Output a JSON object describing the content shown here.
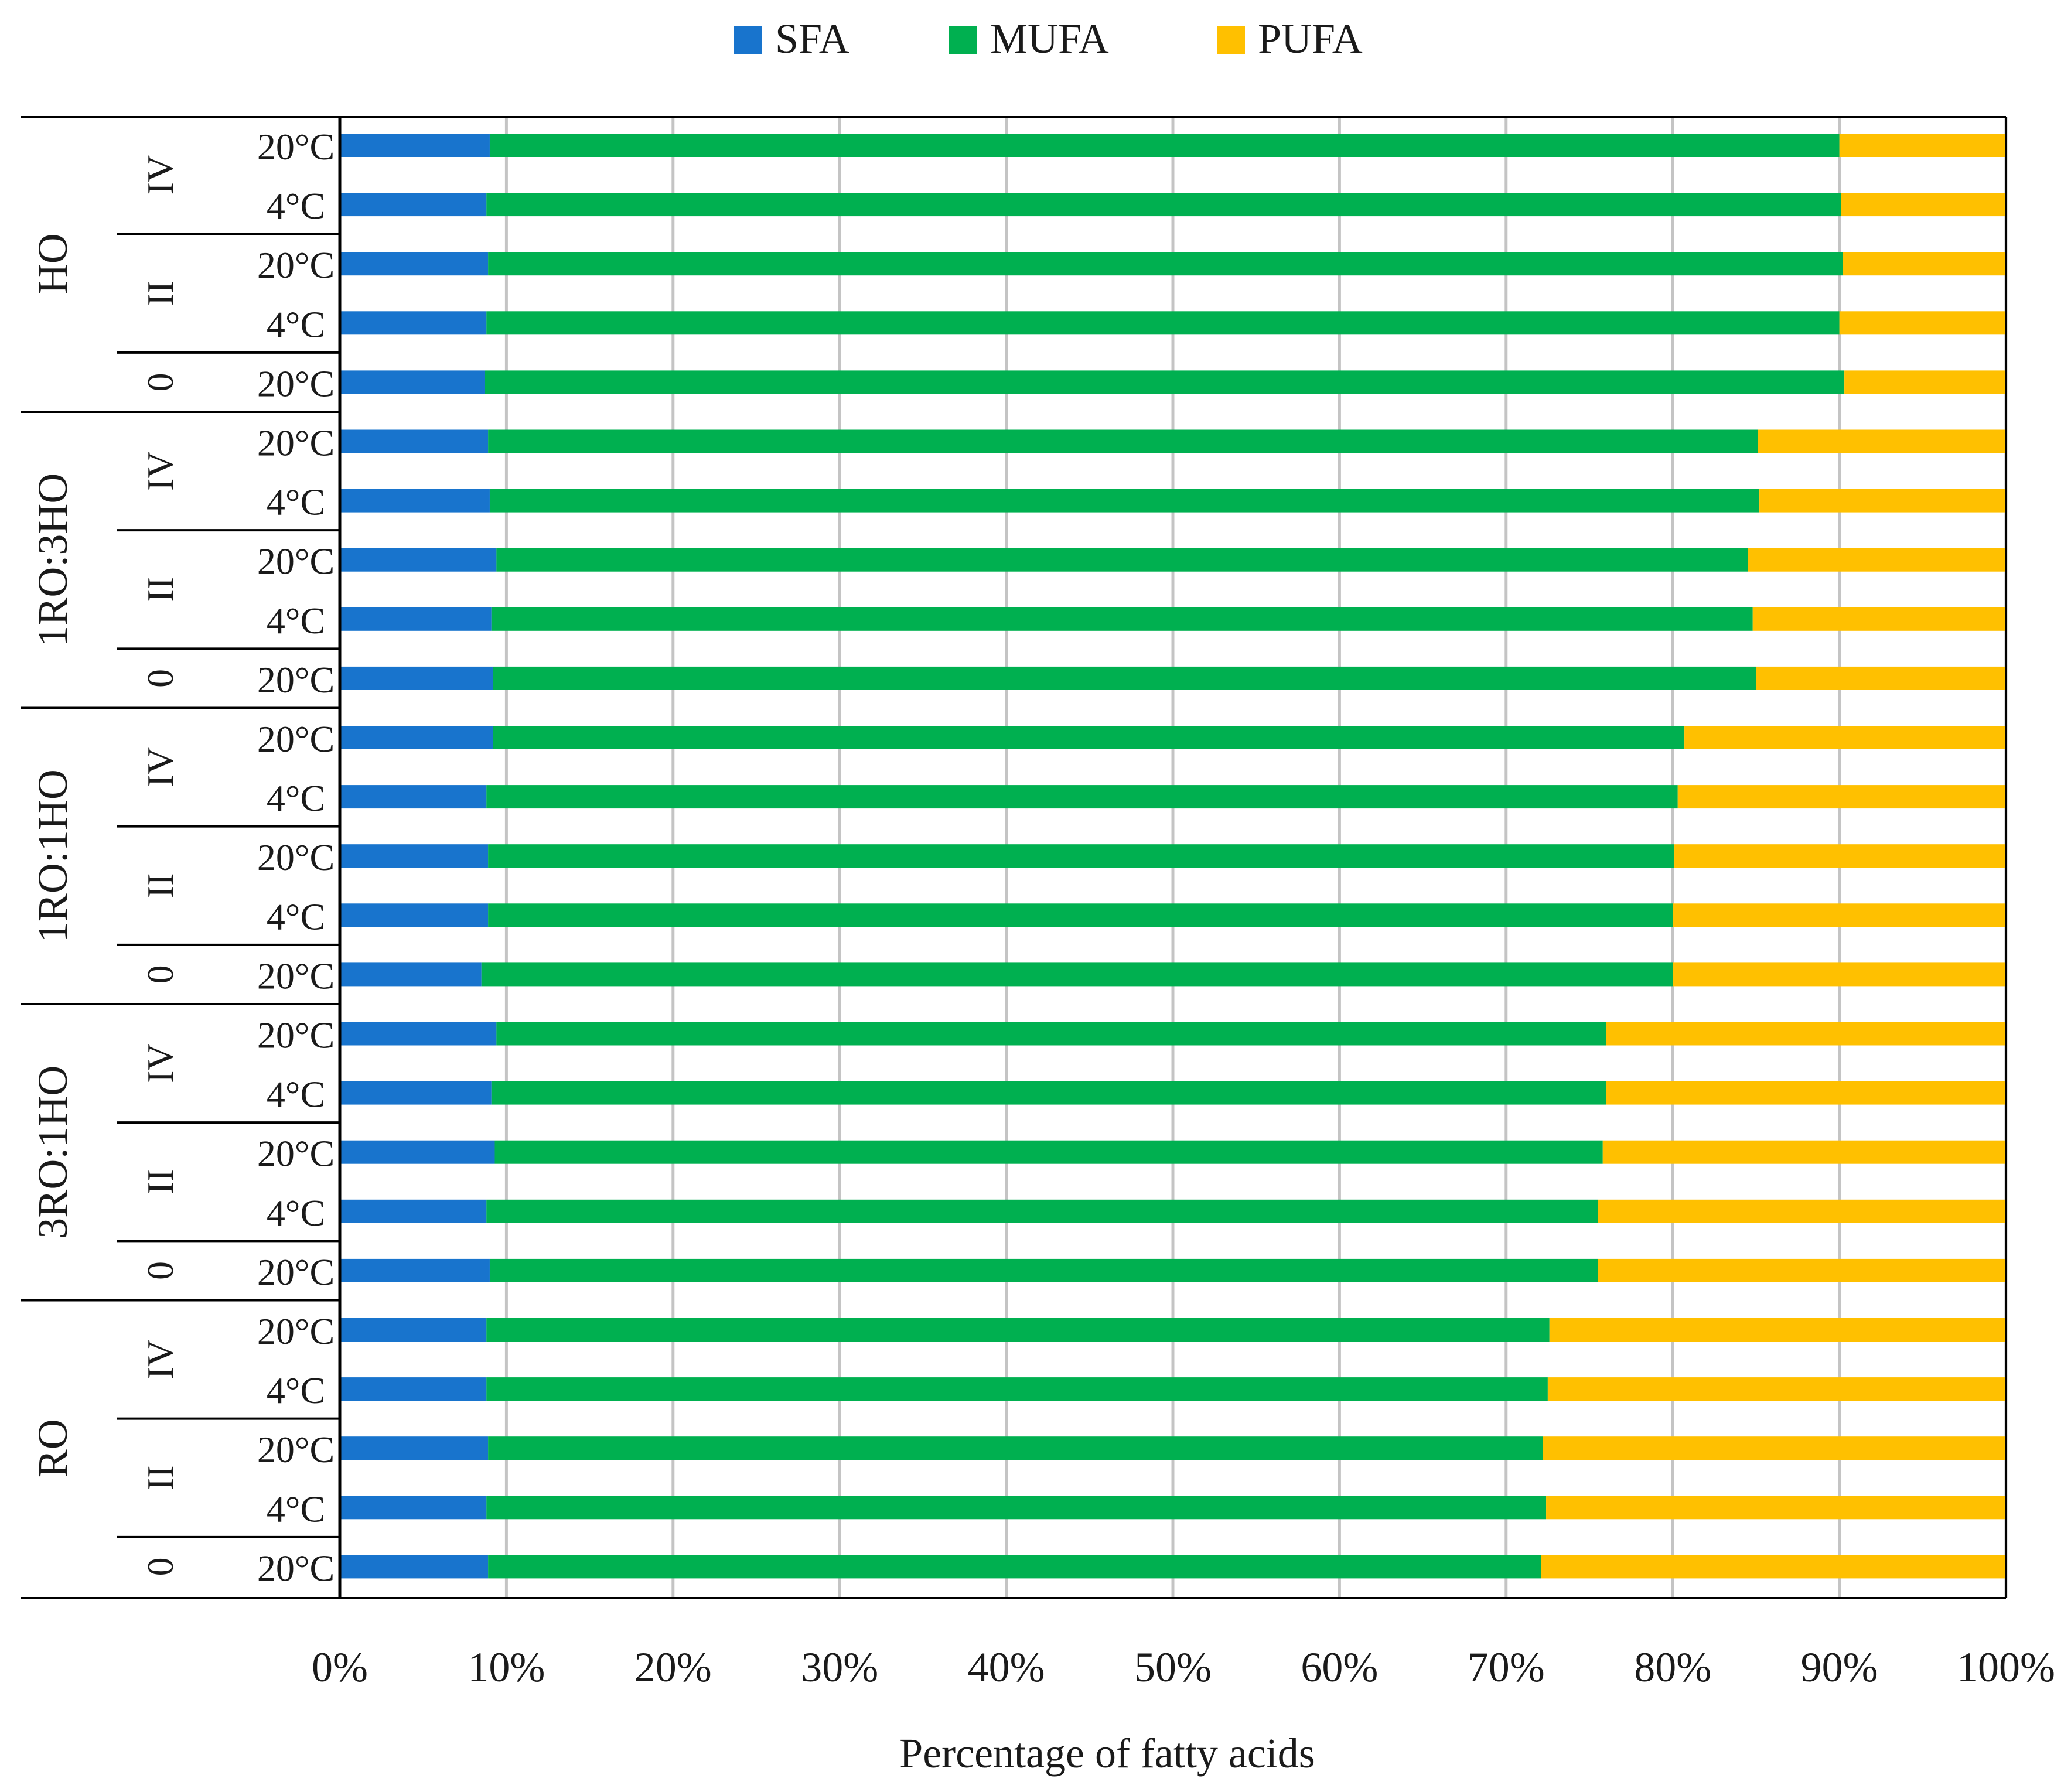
{
  "chart_data": {
    "type": "bar",
    "orientation": "horizontal",
    "stacked": "percent",
    "xlabel": "Percentage of fatty acids",
    "ylabel": "",
    "xlim": [
      0,
      100
    ],
    "x_ticks": [
      "0%",
      "10%",
      "20%",
      "30%",
      "40%",
      "50%",
      "60%",
      "70%",
      "80%",
      "90%",
      "100%"
    ],
    "grid": "vertical",
    "legend_position": "top",
    "legend": [
      "SFA",
      "MUFA",
      "PUFA"
    ],
    "colors": {
      "SFA": "#1874CD",
      "MUFA": "#00B050",
      "PUFA": "#FFC000"
    },
    "groups": [
      {
        "name": "HO",
        "subgroups": [
          {
            "name": "IV",
            "rows": [
              {
                "temp": "20°C",
                "SFA": 9.0,
                "MUFA": 81.0,
                "PUFA": 10.0
              },
              {
                "temp": "4°C",
                "SFA": 8.8,
                "MUFA": 81.3,
                "PUFA": 9.9
              }
            ]
          },
          {
            "name": "II",
            "rows": [
              {
                "temp": "20°C",
                "SFA": 8.9,
                "MUFA": 81.3,
                "PUFA": 9.8
              },
              {
                "temp": "4°C",
                "SFA": 8.8,
                "MUFA": 81.2,
                "PUFA": 10.0
              }
            ]
          },
          {
            "name": "0",
            "rows": [
              {
                "temp": "20°C",
                "SFA": 8.7,
                "MUFA": 81.6,
                "PUFA": 9.7
              }
            ]
          }
        ]
      },
      {
        "name": "1RO:3HO",
        "subgroups": [
          {
            "name": "IV",
            "rows": [
              {
                "temp": "20°C",
                "SFA": 8.9,
                "MUFA": 76.2,
                "PUFA": 14.9
              },
              {
                "temp": "4°C",
                "SFA": 9.0,
                "MUFA": 76.2,
                "PUFA": 14.8
              }
            ]
          },
          {
            "name": "II",
            "rows": [
              {
                "temp": "20°C",
                "SFA": 9.4,
                "MUFA": 75.1,
                "PUFA": 15.5
              },
              {
                "temp": "4°C",
                "SFA": 9.1,
                "MUFA": 75.7,
                "PUFA": 15.2
              }
            ]
          },
          {
            "name": "0",
            "rows": [
              {
                "temp": "20°C",
                "SFA": 9.2,
                "MUFA": 75.8,
                "PUFA": 15.0
              }
            ]
          }
        ]
      },
      {
        "name": "1RO:1HO",
        "subgroups": [
          {
            "name": "IV",
            "rows": [
              {
                "temp": "20°C",
                "SFA": 9.2,
                "MUFA": 71.5,
                "PUFA": 19.3
              },
              {
                "temp": "4°C",
                "SFA": 8.8,
                "MUFA": 71.5,
                "PUFA": 19.7
              }
            ]
          },
          {
            "name": "II",
            "rows": [
              {
                "temp": "20°C",
                "SFA": 8.9,
                "MUFA": 71.2,
                "PUFA": 19.9
              },
              {
                "temp": "4°C",
                "SFA": 8.9,
                "MUFA": 71.1,
                "PUFA": 20.0
              }
            ]
          },
          {
            "name": "0",
            "rows": [
              {
                "temp": "20°C",
                "SFA": 8.5,
                "MUFA": 71.5,
                "PUFA": 20.0
              }
            ]
          }
        ]
      },
      {
        "name": "3RO:1HO",
        "subgroups": [
          {
            "name": "IV",
            "rows": [
              {
                "temp": "20°C",
                "SFA": 9.4,
                "MUFA": 66.6,
                "PUFA": 24.0
              },
              {
                "temp": "4°C",
                "SFA": 9.1,
                "MUFA": 66.9,
                "PUFA": 24.0
              }
            ]
          },
          {
            "name": "II",
            "rows": [
              {
                "temp": "20°C",
                "SFA": 9.3,
                "MUFA": 66.5,
                "PUFA": 24.2
              },
              {
                "temp": "4°C",
                "SFA": 8.8,
                "MUFA": 66.7,
                "PUFA": 24.5
              }
            ]
          },
          {
            "name": "0",
            "rows": [
              {
                "temp": "20°C",
                "SFA": 9.0,
                "MUFA": 66.5,
                "PUFA": 24.5
              }
            ]
          }
        ]
      },
      {
        "name": "RO",
        "subgroups": [
          {
            "name": "IV",
            "rows": [
              {
                "temp": "20°C",
                "SFA": 8.8,
                "MUFA": 63.8,
                "PUFA": 27.4
              },
              {
                "temp": "4°C",
                "SFA": 8.8,
                "MUFA": 63.7,
                "PUFA": 27.5
              }
            ]
          },
          {
            "name": "II",
            "rows": [
              {
                "temp": "20°C",
                "SFA": 8.9,
                "MUFA": 63.3,
                "PUFA": 27.8
              },
              {
                "temp": "4°C",
                "SFA": 8.8,
                "MUFA": 63.6,
                "PUFA": 27.6
              }
            ]
          },
          {
            "name": "0",
            "rows": [
              {
                "temp": "20°C",
                "SFA": 8.9,
                "MUFA": 63.2,
                "PUFA": 27.9
              }
            ]
          }
        ]
      }
    ]
  }
}
